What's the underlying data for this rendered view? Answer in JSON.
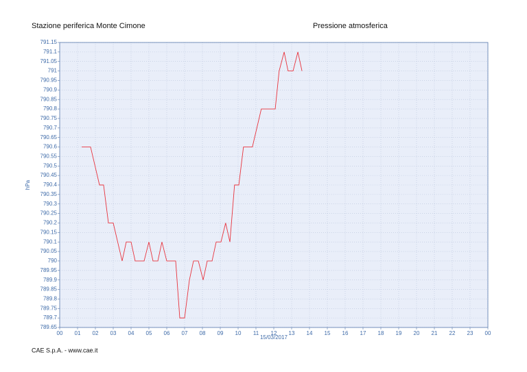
{
  "chart_data": {
    "type": "line",
    "title": "Stazione periferica Monte Cimone",
    "subtitle": "Pressione atmosferica",
    "footer": "CAE S.p.A. - www.cae.it",
    "y_label": "hPa",
    "x_label": "15/03/2017",
    "color": "#e8323c",
    "grid": true,
    "x": [
      1.23,
      1.73,
      2.23,
      2.46,
      2.73,
      3.0,
      3.5,
      3.73,
      4.0,
      4.23,
      4.73,
      5.0,
      5.23,
      5.5,
      5.73,
      6.0,
      6.5,
      6.73,
      7.0,
      7.27,
      7.5,
      7.77,
      8.04,
      8.27,
      8.54,
      8.77,
      9.04,
      9.3,
      9.54,
      9.8,
      10.04,
      10.3,
      10.8,
      11.3,
      12.08,
      12.3,
      12.58,
      12.8,
      13.08,
      13.35,
      13.58
    ],
    "values": [
      790.6,
      790.6,
      790.4,
      790.4,
      790.2,
      790.2,
      790.0,
      790.1,
      790.1,
      790.0,
      790.0,
      790.1,
      790.0,
      790.0,
      790.1,
      790.0,
      790.0,
      789.7,
      789.7,
      789.9,
      790.0,
      790.0,
      789.9,
      790.0,
      790.0,
      790.1,
      790.1,
      790.2,
      790.1,
      790.4,
      790.4,
      790.6,
      790.6,
      790.8,
      790.8,
      791.0,
      791.1,
      791.0,
      791.0,
      791.1,
      791.0
    ],
    "xlim": [
      0,
      24
    ],
    "xticks": [
      {
        "value": 0,
        "label": "00"
      },
      {
        "value": 1,
        "label": "01"
      },
      {
        "value": 2,
        "label": "02"
      },
      {
        "value": 3,
        "label": "03"
      },
      {
        "value": 4,
        "label": "04"
      },
      {
        "value": 5,
        "label": "05"
      },
      {
        "value": 6,
        "label": "06"
      },
      {
        "value": 7,
        "label": "07"
      },
      {
        "value": 8,
        "label": "08"
      },
      {
        "value": 9,
        "label": "09"
      },
      {
        "value": 10,
        "label": "10"
      },
      {
        "value": 11,
        "label": "11"
      },
      {
        "value": 12,
        "label": "12"
      },
      {
        "value": 13,
        "label": "13"
      },
      {
        "value": 14,
        "label": "14"
      },
      {
        "value": 15,
        "label": "15"
      },
      {
        "value": 16,
        "label": "16"
      },
      {
        "value": 17,
        "label": "17"
      },
      {
        "value": 18,
        "label": "18"
      },
      {
        "value": 19,
        "label": "19"
      },
      {
        "value": 20,
        "label": "20"
      },
      {
        "value": 21,
        "label": "21"
      },
      {
        "value": 22,
        "label": "22"
      },
      {
        "value": 23,
        "label": "23"
      },
      {
        "value": 24,
        "label": "00"
      }
    ],
    "ylim": [
      789.65,
      791.15
    ],
    "yticks": [
      789.65,
      789.7,
      789.75,
      789.8,
      789.85,
      789.9,
      789.95,
      790,
      790.05,
      790.1,
      790.15,
      790.2,
      790.25,
      790.3,
      790.35,
      790.4,
      790.45,
      790.5,
      790.55,
      790.6,
      790.65,
      790.7,
      790.75,
      790.8,
      790.85,
      790.9,
      790.95,
      791,
      791.05,
      791.1,
      791.15
    ]
  }
}
